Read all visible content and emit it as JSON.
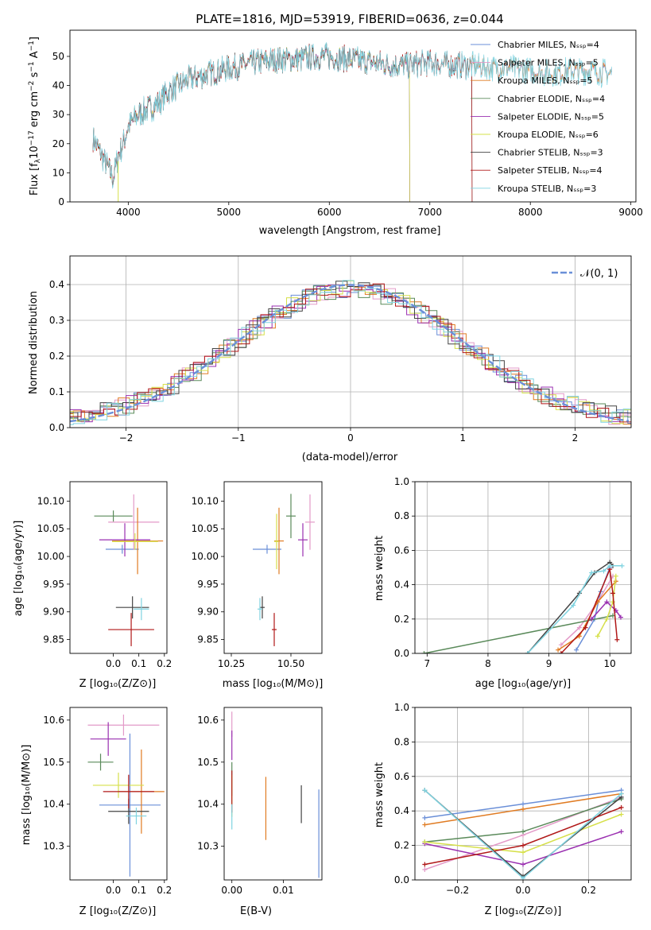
{
  "chart_data": [
    {
      "id": "spectrum",
      "type": "line",
      "title": "PLATE=1816, MJD=53919, FIBERID=0636, z=0.044",
      "xlabel": "wavelength [Angstrom, rest frame]",
      "ylabel": "Flux [fλ10⁻¹⁷ erg cm⁻² s⁻¹ A⁻¹]",
      "xlim": [
        3420,
        9050
      ],
      "ylim": [
        0,
        59
      ],
      "xticks": [
        4000,
        5000,
        6000,
        7000,
        8000,
        9000
      ],
      "yticks": [
        0,
        10,
        20,
        30,
        40,
        50
      ],
      "legend_position": "upper right",
      "series": [
        {
          "name": "Chabrier MILES, N_SSP=4",
          "color": "#6a8fd8",
          "end": 8810
        },
        {
          "name": "Salpeter MILES, N_SSP=5",
          "color": "#e39ac8",
          "end": 8810
        },
        {
          "name": "Kroupa MILES, N_SSP=5",
          "color": "#e07b22",
          "end": 8810
        },
        {
          "name": "Chabrier ELODIE, N_SSP=4",
          "color": "#5a8a5a",
          "end": 6800
        },
        {
          "name": "Salpeter ELODIE, N_SSP=5",
          "color": "#9a2fb0",
          "end": 6800
        },
        {
          "name": "Kroupa ELODIE, N_SSP=6",
          "color": "#d6e04a",
          "end": 6800
        },
        {
          "name": "Chabrier STELIB, N_SSP=3",
          "color": "#444444",
          "end": 7420
        },
        {
          "name": "Salpeter STELIB, N_SSP=4",
          "color": "#b01818",
          "end": 7420
        },
        {
          "name": "Kroupa STELIB, N_SSP=3",
          "color": "#7fd3e0",
          "end": 8810
        }
      ],
      "anchors": [
        [
          3650,
          22
        ],
        [
          3750,
          15
        ],
        [
          3850,
          8
        ],
        [
          3900,
          16
        ],
        [
          3950,
          20
        ],
        [
          4000,
          26
        ],
        [
          4100,
          30
        ],
        [
          4200,
          32
        ],
        [
          4300,
          34
        ],
        [
          4400,
          38
        ],
        [
          4500,
          40
        ],
        [
          4600,
          42
        ],
        [
          4800,
          44
        ],
        [
          5000,
          46
        ],
        [
          5150,
          47
        ],
        [
          5300,
          48
        ],
        [
          5500,
          49
        ],
        [
          5700,
          49
        ],
        [
          5900,
          50
        ],
        [
          6000,
          50
        ],
        [
          6200,
          49
        ],
        [
          6400,
          48
        ],
        [
          6600,
          47
        ],
        [
          6800,
          47
        ],
        [
          7000,
          48
        ],
        [
          7200,
          47
        ],
        [
          7400,
          47
        ],
        [
          7600,
          46
        ],
        [
          7800,
          46
        ],
        [
          8000,
          45
        ],
        [
          8200,
          44
        ],
        [
          8400,
          45
        ],
        [
          8600,
          45
        ],
        [
          8810,
          44
        ]
      ]
    },
    {
      "id": "residuals",
      "type": "histogram",
      "xlabel": "(data-model)/error",
      "ylabel": "Normed distribution",
      "xlim": [
        -2.5,
        2.5
      ],
      "ylim": [
        0,
        0.48
      ],
      "xticks": [
        -2,
        -1,
        0,
        1,
        2
      ],
      "yticks": [
        0.0,
        0.1,
        0.2,
        0.3,
        0.4
      ],
      "grid": true,
      "legend": "𝒩(0, 1)",
      "reference_curve": {
        "name": "𝒩(0, 1)",
        "color": "#6a8fd8",
        "style": "dashed"
      },
      "bin_width": 0.1
    },
    {
      "id": "age_vs_Z",
      "type": "errorbar",
      "xlabel": "Z [log₁₀(Z/Z⊙)]",
      "ylabel": "age  [log₁₀(age/yr)]",
      "xlim": [
        -0.17,
        0.21
      ],
      "ylim": [
        9.825,
        10.135
      ],
      "xticks": [
        0.0,
        0.1,
        0.2
      ],
      "yticks": [
        9.85,
        9.9,
        9.95,
        10.0,
        10.05,
        10.1
      ],
      "points": [
        {
          "x": 0.035,
          "y": 10.013,
          "xerr": 0.065,
          "yerr": 0.008,
          "color": "#6a8fd8"
        },
        {
          "x": 0.08,
          "y": 10.062,
          "xerr": 0.1,
          "yerr": 0.05,
          "color": "#e39ac8"
        },
        {
          "x": 0.095,
          "y": 10.028,
          "xerr": 0.1,
          "yerr": 0.06,
          "color": "#e07b22"
        },
        {
          "x": 0.0,
          "y": 10.073,
          "xerr": 0.075,
          "yerr": 0.01,
          "color": "#5a8a5a"
        },
        {
          "x": 0.045,
          "y": 10.03,
          "xerr": 0.1,
          "yerr": 0.03,
          "color": "#9a2fb0"
        },
        {
          "x": 0.085,
          "y": 10.027,
          "xerr": 0.09,
          "yerr": 0.015,
          "color": "#d6e04a"
        },
        {
          "x": 0.075,
          "y": 9.908,
          "xerr": 0.065,
          "yerr": 0.02,
          "color": "#444444"
        },
        {
          "x": 0.07,
          "y": 9.868,
          "xerr": 0.09,
          "yerr": 0.03,
          "color": "#b01818"
        },
        {
          "x": 0.11,
          "y": 9.905,
          "xerr": 0.03,
          "yerr": 0.02,
          "color": "#7fd3e0"
        }
      ]
    },
    {
      "id": "age_vs_mass",
      "type": "errorbar",
      "xlabel": "mass [log₁₀(M/M⊙)]",
      "ylabel": "",
      "xlim": [
        10.22,
        10.63
      ],
      "ylim": [
        9.825,
        10.135
      ],
      "xticks": [
        10.25,
        10.5
      ],
      "yticks": [
        9.85,
        9.9,
        9.95,
        10.0,
        10.05,
        10.1
      ],
      "points": [
        {
          "x": 10.4,
          "y": 10.013,
          "xerr": 0.06,
          "yerr": 0.008,
          "color": "#6a8fd8"
        },
        {
          "x": 10.58,
          "y": 10.062,
          "xerr": 0.02,
          "yerr": 0.05,
          "color": "#e39ac8"
        },
        {
          "x": 10.45,
          "y": 10.028,
          "xerr": 0.02,
          "yerr": 0.06,
          "color": "#e07b22"
        },
        {
          "x": 10.5,
          "y": 10.073,
          "xerr": 0.02,
          "yerr": 0.04,
          "color": "#5a8a5a"
        },
        {
          "x": 10.55,
          "y": 10.03,
          "xerr": 0.02,
          "yerr": 0.03,
          "color": "#9a2fb0"
        },
        {
          "x": 10.44,
          "y": 10.027,
          "xerr": 0.01,
          "yerr": 0.05,
          "color": "#d6e04a"
        },
        {
          "x": 10.38,
          "y": 9.908,
          "xerr": 0.01,
          "yerr": 0.02,
          "color": "#444444"
        },
        {
          "x": 10.43,
          "y": 9.868,
          "xerr": 0.01,
          "yerr": 0.03,
          "color": "#b01818"
        },
        {
          "x": 10.37,
          "y": 9.905,
          "xerr": 0.01,
          "yerr": 0.02,
          "color": "#7fd3e0"
        }
      ]
    },
    {
      "id": "massweight_vs_age",
      "type": "line",
      "xlabel": "age  [log₁₀(age/yr)]",
      "ylabel": "mass weight",
      "xlim": [
        6.8,
        10.35
      ],
      "ylim": [
        0,
        1.0
      ],
      "xticks": [
        7,
        8,
        9,
        10
      ],
      "yticks": [
        0.0,
        0.2,
        0.4,
        0.6,
        0.8,
        1.0
      ],
      "grid": true,
      "series": [
        {
          "color": "#6a8fd8",
          "x": [
            9.45,
            9.75,
            9.85,
            10.0
          ],
          "y": [
            0.02,
            0.2,
            0.36,
            0.5
          ]
        },
        {
          "color": "#e39ac8",
          "x": [
            9.2,
            9.5,
            9.8,
            10.05
          ],
          "y": [
            0.05,
            0.15,
            0.3,
            0.45
          ]
        },
        {
          "color": "#e07b22",
          "x": [
            9.15,
            9.5,
            9.8,
            10.1
          ],
          "y": [
            0.02,
            0.1,
            0.3,
            0.42
          ]
        },
        {
          "color": "#5a8a5a",
          "x": [
            6.95,
            10.05
          ],
          "y": [
            0.0,
            0.22
          ]
        },
        {
          "color": "#9a2fb0",
          "x": [
            9.7,
            9.95,
            10.1,
            10.18
          ],
          "y": [
            0.2,
            0.3,
            0.25,
            0.21
          ]
        },
        {
          "color": "#d6e04a",
          "x": [
            9.8,
            9.95,
            10.05,
            10.1
          ],
          "y": [
            0.1,
            0.2,
            0.3,
            0.45
          ]
        },
        {
          "color": "#444444",
          "x": [
            8.65,
            9.5,
            9.75,
            10.0,
            10.05
          ],
          "y": [
            0.0,
            0.35,
            0.47,
            0.53,
            0.51
          ]
        },
        {
          "color": "#b01818",
          "x": [
            9.2,
            9.6,
            10.0,
            10.05,
            10.12
          ],
          "y": [
            0.0,
            0.15,
            0.49,
            0.35,
            0.08
          ]
        },
        {
          "color": "#7fd3e0",
          "x": [
            8.65,
            9.4,
            9.7,
            9.9,
            10.0,
            10.2
          ],
          "y": [
            0.0,
            0.28,
            0.47,
            0.48,
            0.51,
            0.51
          ]
        }
      ]
    },
    {
      "id": "mass_vs_Z",
      "type": "errorbar",
      "xlabel": "Z [log₁₀(Z/Z⊙)]",
      "ylabel": "mass [log₁₀(M/M⊙)]",
      "xlim": [
        -0.17,
        0.21
      ],
      "ylim": [
        10.22,
        10.63
      ],
      "xticks": [
        0.0,
        0.1,
        0.2
      ],
      "yticks": [
        10.3,
        10.4,
        10.5,
        10.6
      ],
      "points": [
        {
          "x": 0.065,
          "y": 10.398,
          "xerr": 0.12,
          "yerr": 0.17,
          "color": "#6a8fd8"
        },
        {
          "x": 0.04,
          "y": 10.588,
          "xerr": 0.14,
          "yerr": 0.025,
          "color": "#e39ac8"
        },
        {
          "x": 0.11,
          "y": 10.43,
          "xerr": 0.09,
          "yerr": 0.1,
          "color": "#e07b22"
        },
        {
          "x": -0.05,
          "y": 10.5,
          "xerr": 0.05,
          "yerr": 0.02,
          "color": "#5a8a5a"
        },
        {
          "x": -0.02,
          "y": 10.555,
          "xerr": 0.07,
          "yerr": 0.04,
          "color": "#9a2fb0"
        },
        {
          "x": 0.02,
          "y": 10.445,
          "xerr": 0.1,
          "yerr": 0.03,
          "color": "#d6e04a"
        },
        {
          "x": 0.06,
          "y": 10.383,
          "xerr": 0.08,
          "yerr": 0.03,
          "color": "#444444"
        },
        {
          "x": 0.06,
          "y": 10.43,
          "xerr": 0.1,
          "yerr": 0.04,
          "color": "#b01818"
        },
        {
          "x": 0.09,
          "y": 10.372,
          "xerr": 0.04,
          "yerr": 0.02,
          "color": "#7fd3e0"
        }
      ]
    },
    {
      "id": "mass_vs_ebv",
      "type": "errorbar",
      "xlabel": "E(B-V)",
      "ylabel": "",
      "xlim": [
        -0.0015,
        0.0175
      ],
      "ylim": [
        10.22,
        10.63
      ],
      "xticks": [
        0.0,
        0.01
      ],
      "yticks": [
        10.3,
        10.4,
        10.5,
        10.6
      ],
      "points": [
        {
          "x": 0.0169,
          "y": 10.33,
          "xerr": 0,
          "yerr": 0.105,
          "color": "#6a8fd8"
        },
        {
          "x": 0.0,
          "y": 10.59,
          "xerr": 0,
          "yerr": 0.03,
          "color": "#e39ac8"
        },
        {
          "x": 0.0066,
          "y": 10.39,
          "xerr": 0,
          "yerr": 0.075,
          "color": "#e07b22"
        },
        {
          "x": 0.0,
          "y": 10.46,
          "xerr": 0,
          "yerr": 0.04,
          "color": "#5a8a5a"
        },
        {
          "x": 0.0,
          "y": 10.54,
          "xerr": 0,
          "yerr": 0.035,
          "color": "#9a2fb0"
        },
        {
          "x": 0.0,
          "y": 10.42,
          "xerr": 0,
          "yerr": 0.05,
          "color": "#d6e04a"
        },
        {
          "x": 0.0135,
          "y": 10.4,
          "xerr": 0,
          "yerr": 0.045,
          "color": "#444444"
        },
        {
          "x": 0.0,
          "y": 10.43,
          "xerr": 0,
          "yerr": 0.05,
          "color": "#b01818"
        },
        {
          "x": 0.0,
          "y": 10.37,
          "xerr": 0,
          "yerr": 0.03,
          "color": "#7fd3e0"
        }
      ]
    },
    {
      "id": "massweight_vs_Z",
      "type": "line",
      "xlabel": "Z [log₁₀(Z/Z⊙)]",
      "ylabel": "mass weight",
      "xlim": [
        -0.33,
        0.33
      ],
      "ylim": [
        0,
        1.0
      ],
      "xticks": [
        -0.2,
        0.0,
        0.2
      ],
      "yticks": [
        0.0,
        0.2,
        0.4,
        0.6,
        0.8,
        1.0
      ],
      "grid": true,
      "series": [
        {
          "color": "#6a8fd8",
          "x": [
            -0.3,
            0.0,
            0.3
          ],
          "y": [
            0.36,
            0.44,
            0.52
          ]
        },
        {
          "color": "#e39ac8",
          "x": [
            -0.3,
            0.0,
            0.3
          ],
          "y": [
            0.06,
            0.26,
            0.48
          ]
        },
        {
          "color": "#e07b22",
          "x": [
            -0.3,
            0.0,
            0.3
          ],
          "y": [
            0.32,
            0.41,
            0.5
          ]
        },
        {
          "color": "#5a8a5a",
          "x": [
            -0.3,
            0.0,
            0.3
          ],
          "y": [
            0.22,
            0.28,
            0.47
          ]
        },
        {
          "color": "#9a2fb0",
          "x": [
            -0.3,
            0.0,
            0.3
          ],
          "y": [
            0.21,
            0.09,
            0.28
          ]
        },
        {
          "color": "#d6e04a",
          "x": [
            -0.3,
            0.0,
            0.3
          ],
          "y": [
            0.22,
            0.16,
            0.38
          ]
        },
        {
          "color": "#444444",
          "x": [
            -0.3,
            0.0,
            0.3
          ],
          "y": [
            0.52,
            0.02,
            0.48
          ]
        },
        {
          "color": "#b01818",
          "x": [
            -0.3,
            0.0,
            0.3
          ],
          "y": [
            0.09,
            0.2,
            0.42
          ]
        },
        {
          "color": "#7fd3e0",
          "x": [
            -0.3,
            0.0,
            0.3
          ],
          "y": [
            0.52,
            0.01,
            0.5
          ]
        }
      ]
    }
  ]
}
